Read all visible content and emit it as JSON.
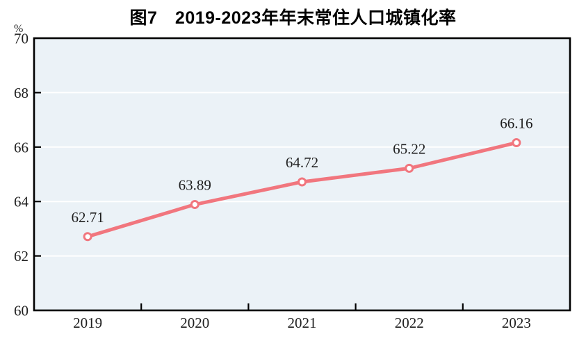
{
  "figure": {
    "title": "图7　2019-2023年年末常住人口城镇化率",
    "unit_label": "%"
  },
  "chart_data": {
    "type": "line",
    "title": "图7　2019-2023年年末常住人口城镇化率",
    "categories": [
      "2019",
      "2020",
      "2021",
      "2022",
      "2023"
    ],
    "series": [
      {
        "name": "年末常住人口城镇化率",
        "values": [
          62.71,
          63.89,
          64.72,
          65.22,
          66.16
        ]
      }
    ],
    "data_labels": [
      "62.71",
      "63.89",
      "64.72",
      "65.22",
      "66.16"
    ],
    "xlabel": "",
    "ylabel": "%",
    "ylim": [
      60,
      70
    ],
    "y_ticks": [
      60,
      62,
      64,
      66,
      68,
      70
    ],
    "grid": true,
    "legend_position": "none",
    "colors": {
      "line": "#f1767e",
      "marker_fill": "#ffffff",
      "plot_bg": "#ebf2f7",
      "gridline": "#ffffff",
      "axis": "#000000",
      "text": "#1f1f1f"
    }
  }
}
